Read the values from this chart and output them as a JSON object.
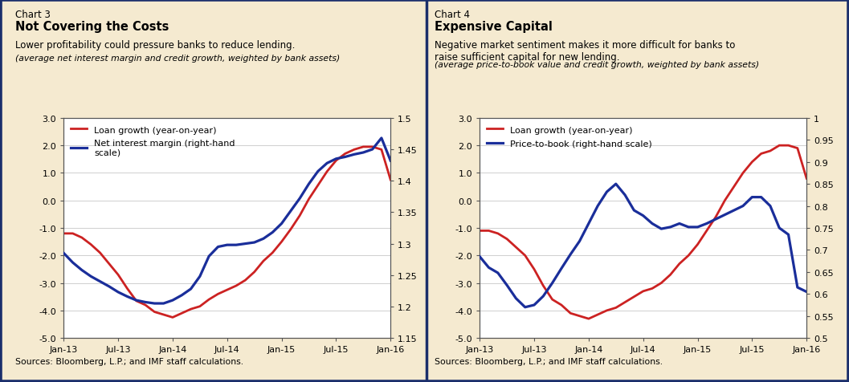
{
  "chart3": {
    "title_line1": "Chart 3",
    "title_line2": "Not Covering the Costs",
    "subtitle": "Lower profitability could pressure banks to reduce lending.",
    "subtitle2": "(average net interest margin and credit growth, weighted by bank assets)",
    "legend1": "Loan growth (year-on-year)",
    "legend2": "Net interest margin (right-hand\nscale)",
    "source": "Sources: Bloomberg, L.P.; and IMF staff calculations.",
    "ylim_left": [
      -5.0,
      3.0
    ],
    "ylim_right": [
      1.15,
      1.5
    ],
    "yticks_left": [
      -5.0,
      -4.0,
      -3.0,
      -2.0,
      -1.0,
      0.0,
      1.0,
      2.0,
      3.0
    ],
    "yticks_right": [
      1.15,
      1.2,
      1.25,
      1.3,
      1.35,
      1.4,
      1.45,
      1.5
    ],
    "red_y": [
      -1.2,
      -1.2,
      -1.35,
      -1.6,
      -1.9,
      -2.3,
      -2.7,
      -3.2,
      -3.65,
      -3.8,
      -4.05,
      -4.15,
      -4.25,
      -4.1,
      -3.95,
      -3.85,
      -3.6,
      -3.4,
      -3.25,
      -3.1,
      -2.9,
      -2.6,
      -2.2,
      -1.9,
      -1.5,
      -1.05,
      -0.55,
      0.05,
      0.55,
      1.05,
      1.45,
      1.7,
      1.85,
      1.95,
      1.95,
      1.85,
      0.75
    ],
    "blue_y_right": [
      1.285,
      1.27,
      1.258,
      1.248,
      1.24,
      1.232,
      1.223,
      1.216,
      1.21,
      1.207,
      1.205,
      1.205,
      1.21,
      1.218,
      1.228,
      1.248,
      1.28,
      1.295,
      1.298,
      1.298,
      1.3,
      1.302,
      1.308,
      1.318,
      1.332,
      1.352,
      1.372,
      1.395,
      1.415,
      1.428,
      1.435,
      1.438,
      1.442,
      1.445,
      1.45,
      1.468,
      1.432
    ]
  },
  "chart4": {
    "title_line1": "Chart 4",
    "title_line2": "Expensive Capital",
    "subtitle": "Negative market sentiment makes it more difficult for banks to\nraise sufficient capital for new lending.",
    "subtitle2": "(average price-to-book value and credit growth, weighted by bank assets)",
    "legend1": "Loan growth (year-on-year)",
    "legend2": "Price-to-book (right-hand scale)",
    "source": "Sources: Bloomberg, L.P.; and IMF staff calculations.",
    "ylim_left": [
      -5.0,
      3.0
    ],
    "ylim_right": [
      0.5,
      1.0
    ],
    "yticks_left": [
      -5.0,
      -4.0,
      -3.0,
      -2.0,
      -1.0,
      0.0,
      1.0,
      2.0,
      3.0
    ],
    "yticks_right": [
      0.5,
      0.55,
      0.6,
      0.65,
      0.7,
      0.75,
      0.8,
      0.85,
      0.9,
      0.95,
      1.0
    ],
    "red_y": [
      -1.1,
      -1.1,
      -1.2,
      -1.4,
      -1.7,
      -2.0,
      -2.5,
      -3.1,
      -3.6,
      -3.8,
      -4.1,
      -4.2,
      -4.3,
      -4.15,
      -4.0,
      -3.9,
      -3.7,
      -3.5,
      -3.3,
      -3.2,
      -3.0,
      -2.7,
      -2.3,
      -2.0,
      -1.6,
      -1.1,
      -0.6,
      0.0,
      0.5,
      1.0,
      1.4,
      1.7,
      1.8,
      2.0,
      2.0,
      1.9,
      0.8
    ],
    "blue_y_right": [
      0.685,
      0.66,
      0.648,
      0.62,
      0.59,
      0.57,
      0.575,
      0.595,
      0.625,
      0.658,
      0.69,
      0.72,
      0.76,
      0.8,
      0.832,
      0.85,
      0.825,
      0.79,
      0.778,
      0.76,
      0.748,
      0.752,
      0.76,
      0.752,
      0.752,
      0.76,
      0.77,
      0.78,
      0.79,
      0.8,
      0.82,
      0.82,
      0.8,
      0.75,
      0.735,
      0.615,
      0.605
    ]
  },
  "bg_color": "#f5ead0",
  "plot_bg": "#ffffff",
  "border_color": "#1a2e6b",
  "red_color": "#cc2222",
  "blue_color": "#1a2e9a",
  "xtick_labels": [
    "Jan-13",
    "Jul-13",
    "Jan-14",
    "Jul-14",
    "Jan-15",
    "Jul-15",
    "Jan-16"
  ],
  "xtick_positions": [
    0,
    6,
    12,
    18,
    24,
    30,
    36
  ]
}
